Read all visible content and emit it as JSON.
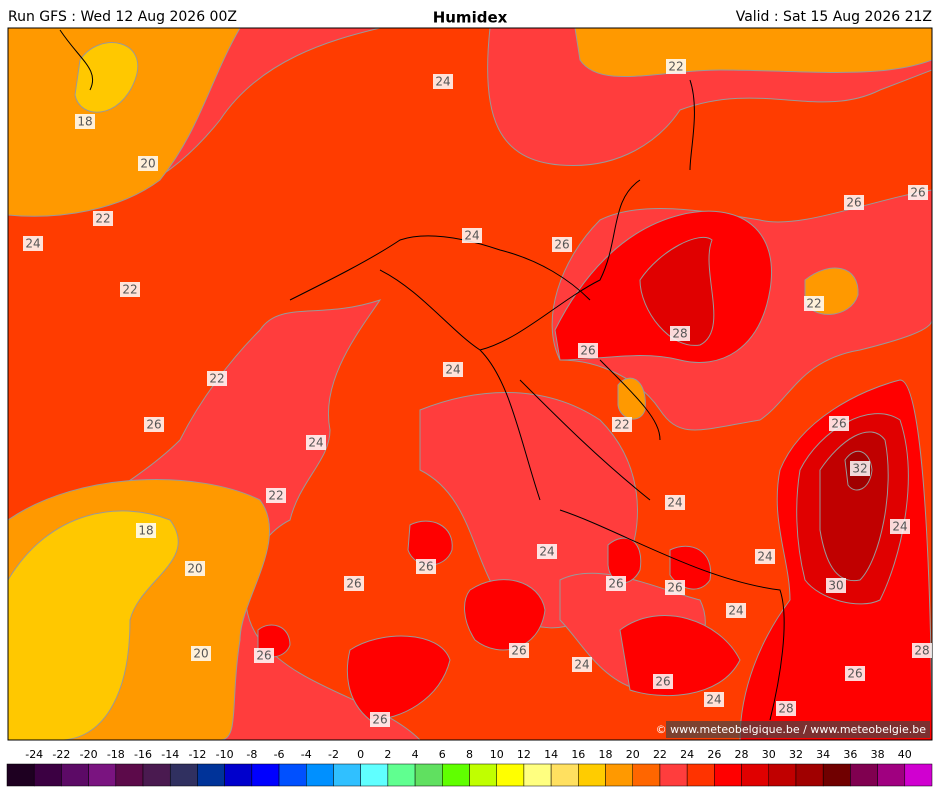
{
  "header": {
    "left": "Run GFS : Wed 12 Aug 2026 00Z",
    "title": "Humidex",
    "right": "Valid : Sat 15 Aug 2026 21Z"
  },
  "contour_labels": [
    24,
    22,
    18,
    20,
    26,
    22,
    26,
    24,
    24,
    26,
    22,
    22,
    28,
    26,
    22,
    24,
    26,
    22,
    26,
    24,
    32,
    22,
    24,
    24,
    18,
    24,
    24,
    20,
    26,
    26,
    26,
    26,
    30,
    24,
    20,
    26,
    26,
    28,
    24,
    26,
    26,
    24,
    28,
    26
  ],
  "copyright": "© www.meteobelgique.be / www.meteobelgie.be",
  "colorbar": {
    "ticks": [
      -24,
      -22,
      -20,
      -18,
      -16,
      -14,
      -12,
      -10,
      -8,
      -6,
      -4,
      -2,
      0,
      2,
      4,
      6,
      8,
      10,
      12,
      14,
      16,
      18,
      20,
      22,
      24,
      26,
      28,
      30,
      32,
      34,
      36,
      38,
      40
    ],
    "colors": [
      "#1e0021",
      "#3b0042",
      "#5c0a66",
      "#7a1480",
      "#5c0a4a",
      "#4a1a50",
      "#303060",
      "#003399",
      "#0000cc",
      "#0000ff",
      "#0050ff",
      "#0090ff",
      "#30c0ff",
      "#60ffff",
      "#60ff90",
      "#60e060",
      "#60ff00",
      "#c0ff00",
      "#ffff00",
      "#ffff80",
      "#ffe060",
      "#ffcc00",
      "#ff9900",
      "#ff6600",
      "#ff3d3d",
      "#ff3300",
      "#ff0000",
      "#e00000",
      "#c00000",
      "#a00000",
      "#700000",
      "#800050",
      "#a00080",
      "#d000d0"
    ]
  }
}
